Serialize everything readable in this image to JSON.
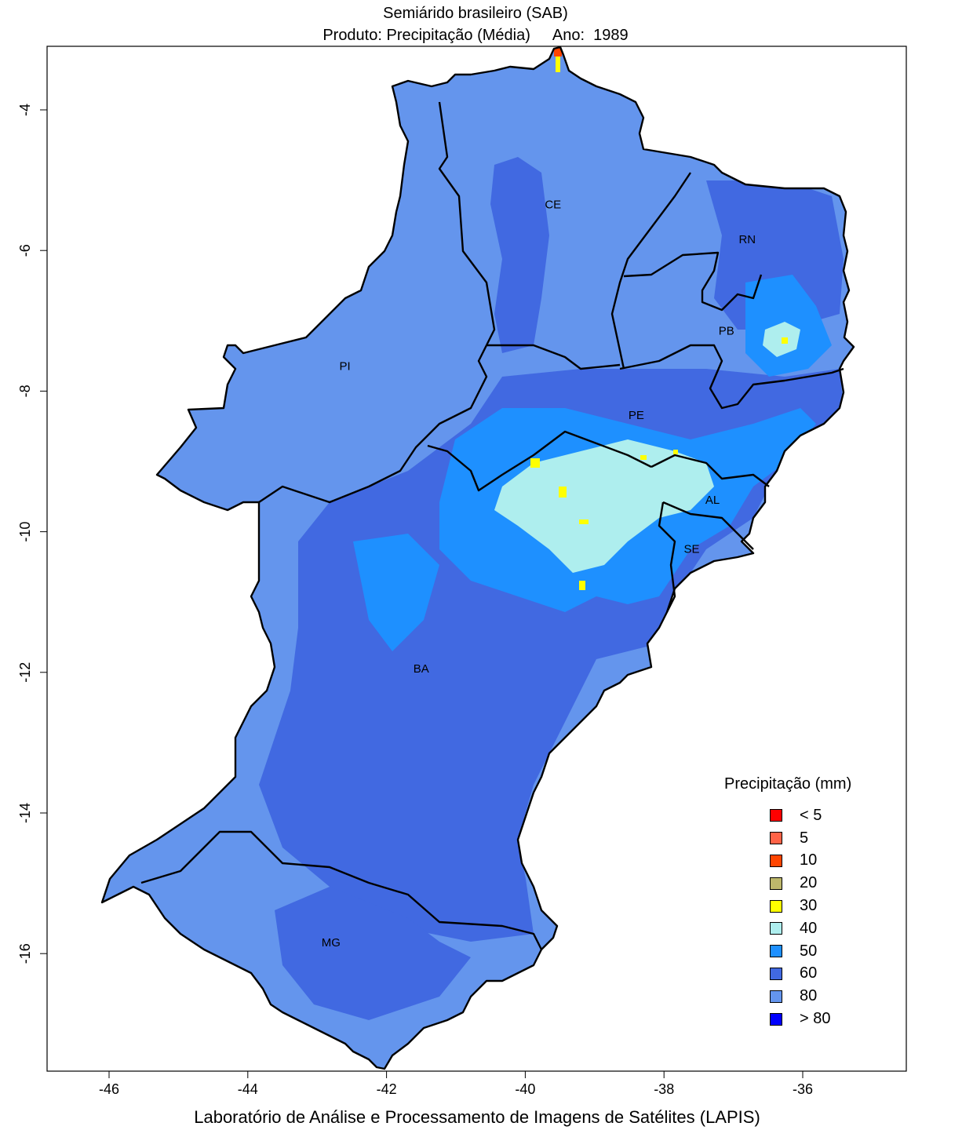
{
  "title_line1": "Semiárido brasileiro (SAB)",
  "title_product": "Produto: Precipitação (Média)",
  "title_year_label": "Ano:",
  "title_year": "1989",
  "footer": "Laboratório de Análise e Processamento de Imagens de Satélites (LAPIS)",
  "x_ticks": [
    "-46",
    "-44",
    "-42",
    "-40",
    "-38",
    "-36"
  ],
  "y_ticks": [
    "-4",
    "-6",
    "-8",
    "-10",
    "-12",
    "-14",
    "-16"
  ],
  "states": [
    {
      "abbr": "CE",
      "lon": -39.6,
      "lat": -5.4
    },
    {
      "abbr": "RN",
      "lon": -36.8,
      "lat": -5.9
    },
    {
      "abbr": "PB",
      "lon": -37.1,
      "lat": -7.2
    },
    {
      "abbr": "PI",
      "lon": -42.6,
      "lat": -7.7
    },
    {
      "abbr": "PE",
      "lon": -38.4,
      "lat": -8.4
    },
    {
      "abbr": "AL",
      "lon": -37.3,
      "lat": -9.6
    },
    {
      "abbr": "SE",
      "lon": -37.6,
      "lat": -10.3
    },
    {
      "abbr": "BA",
      "lon": -41.5,
      "lat": -12.0
    },
    {
      "abbr": "MG",
      "lon": -42.8,
      "lat": -15.9
    }
  ],
  "legend": {
    "title": "Precipitação (mm)",
    "items": [
      {
        "label": "< 5",
        "color": "#ff0000"
      },
      {
        "label": "5",
        "color": "#ff6347"
      },
      {
        "label": "10",
        "color": "#ff4500"
      },
      {
        "label": "20",
        "color": "#bdb76b"
      },
      {
        "label": "30",
        "color": "#ffff00"
      },
      {
        "label": "40",
        "color": "#aeeeee"
      },
      {
        "label": "50",
        "color": "#1e90ff"
      },
      {
        "label": "60",
        "color": "#4169e1"
      },
      {
        "label": "80",
        "color": "#6495ed"
      },
      {
        "label": "> 80",
        "color": "#0000ff"
      }
    ]
  }
}
